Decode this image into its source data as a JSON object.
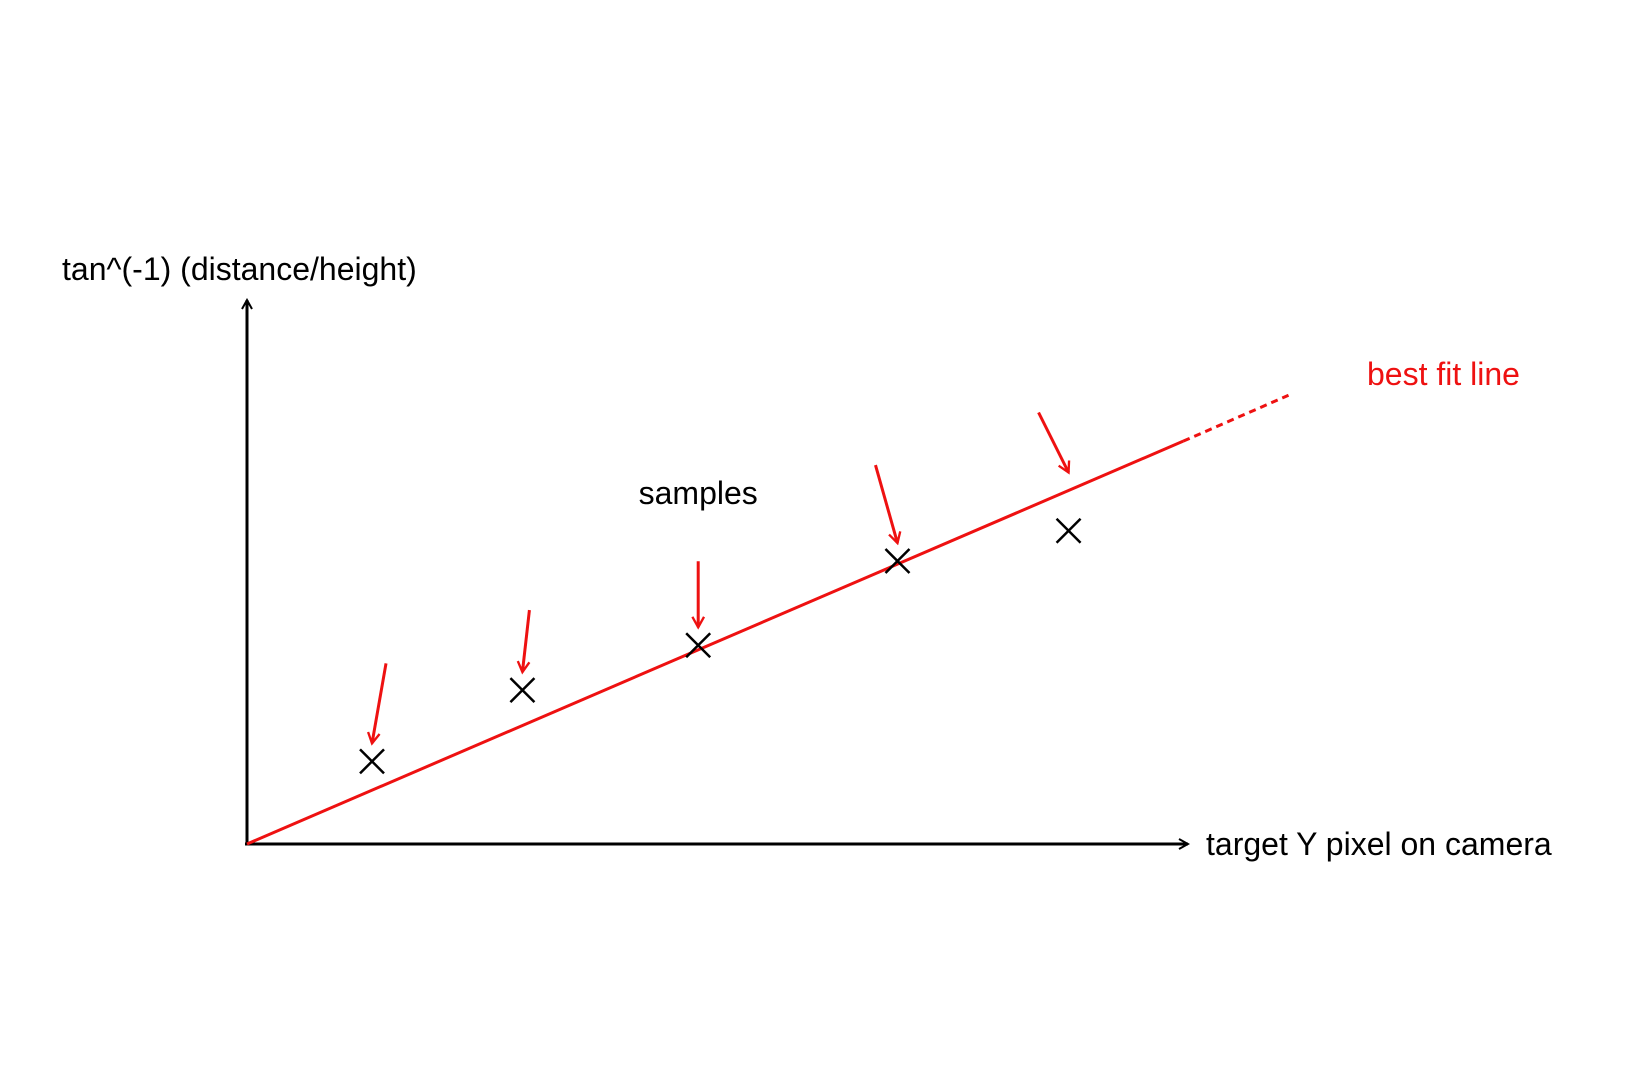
{
  "chart_data": {
    "type": "scatter",
    "title": "",
    "xlabel": "target Y pixel on camera",
    "ylabel": "tan^(-1)  (distance/height)",
    "xlim": [
      0,
      100
    ],
    "ylim": [
      0,
      100
    ],
    "grid": false,
    "legend": "none",
    "series": [
      {
        "points": [
          {
            "x": 13.3,
            "y": 15.3
          },
          {
            "x": 29.3,
            "y": 28.5
          },
          {
            "x": 48.0,
            "y": 36.8
          },
          {
            "x": 69.2,
            "y": 52.4
          },
          {
            "x": 87.4,
            "y": 58.0
          }
        ],
        "color": "#000000",
        "marker": "x"
      }
    ],
    "fit_line": {
      "label": "best fit line",
      "color": "#ee1111",
      "solid_from": [
        0,
        0
      ],
      "solid_to": [
        99.6,
        74.6
      ],
      "dashed_to": [
        110.8,
        83.1
      ]
    },
    "annotations": [
      {
        "text": "samples",
        "at_x": 48.0,
        "at_y": 63.0
      }
    ],
    "arrows_to_points": true,
    "colors": {
      "axis": "#000000",
      "accent": "#ee1111"
    }
  }
}
